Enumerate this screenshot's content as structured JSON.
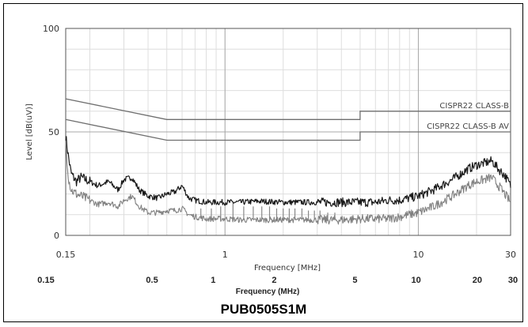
{
  "chart_data": {
    "type": "line",
    "title": "PUB0505S1M",
    "xlabel": "Frequency [MHz]",
    "ylabel": "Level [dB(uV)]",
    "xscale": "log",
    "xlim": [
      0.15,
      30
    ],
    "ylim": [
      0,
      100
    ],
    "x_ticks": [
      {
        "value": 0.15,
        "label": "0.15"
      },
      {
        "value": 1,
        "label": "1"
      },
      {
        "value": 10,
        "label": "10"
      },
      {
        "value": 30,
        "label": "30"
      }
    ],
    "y_ticks": [
      {
        "value": 0,
        "label": "0"
      },
      {
        "value": 50,
        "label": "50"
      },
      {
        "value": 100,
        "label": "100"
      }
    ],
    "secondary_x_axis": {
      "label": "Frequency (MHz)",
      "ticks": [
        {
          "value": 0.15,
          "label": "0.15"
        },
        {
          "value": 0.5,
          "label": "0.5"
        },
        {
          "value": 1,
          "label": "1"
        },
        {
          "value": 2,
          "label": "2"
        },
        {
          "value": 5,
          "label": "5"
        },
        {
          "value": 10,
          "label": "10"
        },
        {
          "value": 20,
          "label": "20"
        },
        {
          "value": 30,
          "label": "30"
        }
      ]
    },
    "grid": true,
    "limit_lines": [
      {
        "name": "CISPR22 CLASS-B",
        "color": "#6e6e6e",
        "x": [
          0.15,
          0.5,
          5,
          5,
          30
        ],
        "y": [
          66,
          56,
          56,
          60,
          60
        ]
      },
      {
        "name": "CISPR22 CLASS-B AV",
        "color": "#6e6e6e",
        "x": [
          0.15,
          0.5,
          5,
          5,
          30
        ],
        "y": [
          56,
          46,
          46,
          50,
          50
        ]
      }
    ],
    "series": [
      {
        "color": "#1a1a1a",
        "x": [
          0.15,
          0.155,
          0.16,
          0.17,
          0.18,
          0.2,
          0.22,
          0.25,
          0.28,
          0.3,
          0.33,
          0.36,
          0.4,
          0.45,
          0.5,
          0.55,
          0.6,
          0.65,
          0.7,
          0.8,
          0.9,
          1,
          1.2,
          1.5,
          2,
          3,
          4,
          5,
          6,
          7,
          8,
          10,
          12,
          15,
          18,
          20,
          22,
          24,
          26,
          28,
          30
        ],
        "y": [
          48,
          38,
          30,
          26,
          28,
          26,
          24,
          26,
          22,
          27,
          28,
          22,
          19,
          18,
          20,
          21,
          24,
          18,
          17,
          16,
          16,
          16,
          16,
          16.5,
          16,
          16,
          16,
          16,
          16,
          17,
          17,
          19,
          22,
          27,
          32,
          34,
          35,
          36,
          32,
          29,
          24
        ]
      },
      {
        "color": "#808080",
        "x": [
          0.15,
          0.155,
          0.16,
          0.17,
          0.18,
          0.2,
          0.22,
          0.25,
          0.28,
          0.3,
          0.33,
          0.36,
          0.4,
          0.45,
          0.5,
          0.55,
          0.6,
          0.65,
          0.7,
          0.8,
          0.9,
          1,
          1.2,
          1.5,
          2,
          3,
          4,
          5,
          6,
          7,
          8,
          10,
          12,
          15,
          18,
          20,
          22,
          24,
          26,
          28,
          30
        ],
        "y": [
          45,
          28,
          22,
          20,
          19,
          17,
          15,
          16,
          14,
          17,
          19,
          14,
          11,
          11,
          12,
          12,
          13,
          10,
          9,
          8,
          8,
          8,
          7.5,
          7.5,
          7.5,
          7.5,
          7.5,
          8,
          8,
          8,
          9,
          11,
          14,
          19,
          24,
          26,
          27,
          28,
          24,
          20,
          16
        ]
      }
    ],
    "spikes": {
      "color": "#888888",
      "x": [
        0.75,
        0.85,
        0.95,
        1.1,
        1.25,
        1.4,
        1.55,
        1.7,
        1.85,
        2.0,
        2.15,
        2.3,
        2.5,
        2.7,
        2.9,
        3.1,
        3.4,
        3.7
      ],
      "y_top": [
        13,
        13,
        14,
        16,
        14,
        14,
        14,
        14,
        13,
        13,
        13,
        13,
        13,
        12,
        12,
        12,
        11,
        11
      ],
      "y_base": [
        8,
        8,
        8,
        8,
        7.5,
        7.5,
        7.5,
        7.5,
        7.5,
        7.5,
        7.5,
        7.5,
        7.5,
        7.5,
        7.5,
        7.5,
        7.5,
        7.5
      ]
    }
  }
}
